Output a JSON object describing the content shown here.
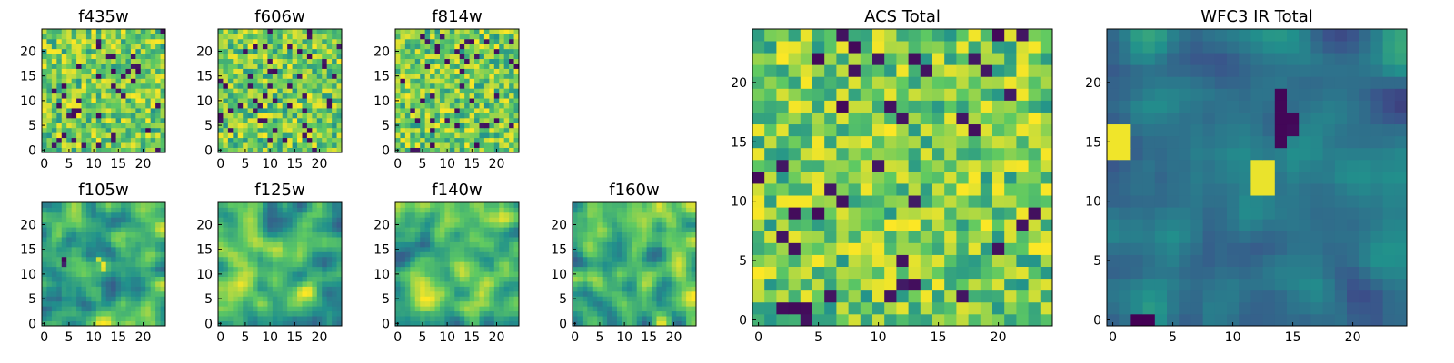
{
  "colormap": {
    "name": "viridis",
    "stops": [
      "#440154",
      "#3b528b",
      "#21918c",
      "#5ec962",
      "#fde725"
    ]
  },
  "chart_data": [
    {
      "type": "heatmap",
      "title": "f435w",
      "grid_size": 25,
      "xticks": [
        "0",
        "5",
        "10",
        "15",
        "20"
      ],
      "yticks": [
        "0",
        "5",
        "10",
        "15",
        "20"
      ],
      "values": "noise field (25×25 pixels), mostly green-yellow values with scattered dark pixels",
      "pattern": "noise",
      "seed": 11
    },
    {
      "type": "heatmap",
      "title": "f606w",
      "grid_size": 25,
      "xticks": [
        "0",
        "5",
        "10",
        "15",
        "20"
      ],
      "yticks": [
        "0",
        "5",
        "10",
        "15",
        "20"
      ],
      "values": "noise field (25×25 pixels)",
      "pattern": "noise",
      "seed": 23
    },
    {
      "type": "heatmap",
      "title": "f814w",
      "grid_size": 25,
      "xticks": [
        "0",
        "5",
        "10",
        "15",
        "20"
      ],
      "yticks": [
        "0",
        "5",
        "10",
        "15",
        "20"
      ],
      "values": "noise field (25×25 pixels)",
      "pattern": "noise",
      "seed": 37
    },
    {
      "type": "heatmap",
      "title": "f105w",
      "grid_size": 25,
      "xticks": [
        "0",
        "5",
        "10",
        "15",
        "20"
      ],
      "yticks": [
        "0",
        "5",
        "10",
        "15",
        "20"
      ],
      "values": "smooth field (25×25 pixels) with a dark spot near (4,11) and a bright spot near (12,12)",
      "pattern": "smooth",
      "seed": 41
    },
    {
      "type": "heatmap",
      "title": "f125w",
      "grid_size": 25,
      "xticks": [
        "0",
        "5",
        "10",
        "15",
        "20"
      ],
      "yticks": [
        "0",
        "5",
        "10",
        "15",
        "20"
      ],
      "values": "smooth field (25×25 pixels)",
      "pattern": "smooth",
      "seed": 53
    },
    {
      "type": "heatmap",
      "title": "f140w",
      "grid_size": 25,
      "xticks": [
        "0",
        "5",
        "10",
        "15",
        "20"
      ],
      "yticks": [
        "0",
        "5",
        "10",
        "15",
        "20"
      ],
      "values": "smooth field (25×25 pixels)",
      "pattern": "smooth",
      "seed": 67
    },
    {
      "type": "heatmap",
      "title": "f160w",
      "grid_size": 25,
      "xticks": [
        "0",
        "5",
        "10",
        "15",
        "20"
      ],
      "yticks": [
        "0",
        "5",
        "10",
        "15",
        "20"
      ],
      "values": "smooth field (25×25 pixels)",
      "pattern": "smooth",
      "seed": 79
    },
    {
      "type": "heatmap",
      "title": "ACS Total",
      "grid_size": 25,
      "xticks": [
        "0",
        "5",
        "10",
        "15",
        "20"
      ],
      "yticks": [
        "0",
        "5",
        "10",
        "15",
        "20"
      ],
      "values": "noise field (25×25 pixels), green-yellow dominant",
      "pattern": "acs",
      "seed": 97
    },
    {
      "type": "heatmap",
      "title": "WFC3 IR Total",
      "grid_size": 25,
      "xticks": [
        "0",
        "5",
        "10",
        "15",
        "20"
      ],
      "yticks": [
        "0",
        "5",
        "10",
        "15",
        "20"
      ],
      "values": "smooth field (25×25 pixels), blue-teal dominant, bright patches near (1,15) and (12,12), dark band near x=14",
      "pattern": "wfc3",
      "seed": 113
    }
  ]
}
